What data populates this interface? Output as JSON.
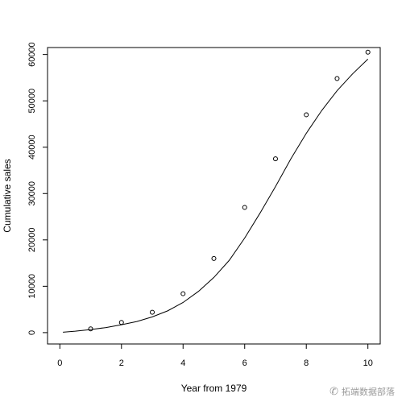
{
  "chart_data": {
    "type": "scatter",
    "xlabel": "Year from 1979",
    "ylabel": "Cumulative sales",
    "xlim": [
      -0.4,
      10.4
    ],
    "ylim": [
      -2450,
      61500
    ],
    "x_ticks": [
      0,
      2,
      4,
      6,
      8,
      10
    ],
    "y_ticks": [
      0,
      10000,
      20000,
      30000,
      40000,
      50000,
      60000
    ],
    "x_tick_labels": [
      "0",
      "2",
      "4",
      "6",
      "8",
      "10"
    ],
    "y_tick_labels": [
      "0",
      "10000",
      "20000",
      "30000",
      "40000",
      "50000",
      "60000"
    ],
    "grid": false,
    "series": [
      {
        "kind": "points",
        "marker": "open-circle",
        "x": [
          1,
          2,
          3,
          4,
          5,
          6,
          7,
          8,
          9,
          10
        ],
        "y": [
          800,
          2200,
          4400,
          8400,
          16000,
          27000,
          37500,
          47000,
          54800,
          60500
        ]
      },
      {
        "kind": "line",
        "x": [
          0.1,
          0.5,
          1,
          1.5,
          2,
          2.5,
          3,
          3.5,
          4,
          4.5,
          5,
          5.5,
          6,
          6.5,
          7,
          7.5,
          8,
          8.5,
          9,
          9.5,
          10
        ],
        "y": [
          100,
          300,
          650,
          1100,
          1700,
          2400,
          3400,
          4700,
          6500,
          8900,
          11900,
          15600,
          20400,
          25800,
          31500,
          37500,
          43000,
          47900,
          52200,
          55800,
          59000
        ]
      }
    ]
  },
  "watermark": {
    "icon": "wechat-icon",
    "text": "拓端数据部落"
  }
}
